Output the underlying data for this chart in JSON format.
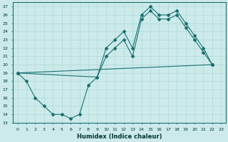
{
  "xlabel": "Humidex (Indice chaleur)",
  "xlim": [
    -0.5,
    23.5
  ],
  "ylim": [
    13,
    27.5
  ],
  "yticks": [
    13,
    14,
    15,
    16,
    17,
    18,
    19,
    20,
    21,
    22,
    23,
    24,
    25,
    26,
    27
  ],
  "xticks": [
    0,
    1,
    2,
    3,
    4,
    5,
    6,
    7,
    8,
    9,
    10,
    11,
    12,
    13,
    14,
    15,
    16,
    17,
    18,
    19,
    20,
    21,
    22,
    23
  ],
  "bg_color": "#cceaea",
  "line_color": "#1a7070",
  "grid_color": "#b0d8d8",
  "series1_x": [
    0,
    1,
    2,
    3,
    4,
    5,
    6,
    7,
    8,
    9,
    10,
    11,
    12,
    13,
    14,
    15,
    16,
    17,
    18,
    19,
    20,
    21,
    22
  ],
  "series1_y": [
    19,
    18,
    16,
    15,
    14,
    14,
    13.5,
    14,
    17.5,
    18.5,
    22,
    23,
    24,
    22,
    26,
    27,
    26,
    26,
    26.5,
    25,
    23.5,
    22,
    20
  ],
  "series2_x": [
    0,
    9,
    10,
    11,
    12,
    13,
    14,
    15,
    16,
    17,
    18,
    19,
    20,
    21,
    22
  ],
  "series2_y": [
    19,
    18.5,
    21,
    22,
    23,
    21,
    25.5,
    26.5,
    25.5,
    25.5,
    26,
    24.5,
    23,
    21.5,
    20
  ],
  "series3_x": [
    0,
    22
  ],
  "series3_y": [
    19,
    20
  ]
}
